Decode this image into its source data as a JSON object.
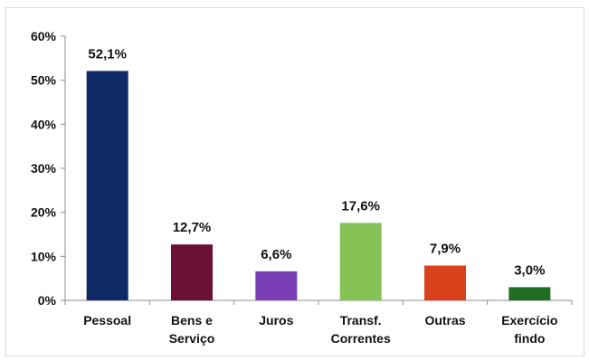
{
  "chart_data": {
    "type": "bar",
    "categories": [
      [
        "Pessoal"
      ],
      [
        "Bens e",
        "Serviço"
      ],
      [
        "Juros"
      ],
      [
        "Transf.",
        "Correntes"
      ],
      [
        "Outras"
      ],
      [
        "Exercício",
        "findo"
      ]
    ],
    "values": [
      52.1,
      12.7,
      6.6,
      17.6,
      7.9,
      3.0
    ],
    "data_labels": [
      "52,1%",
      "12,7%",
      "6,6%",
      "17,6%",
      "7,9%",
      "3,0%"
    ],
    "bar_colors": [
      "#0f2a66",
      "#6b0f34",
      "#7b3fb5",
      "#86c256",
      "#d9401c",
      "#1f6e22"
    ],
    "ylim": [
      0,
      60
    ],
    "yticks": [
      0,
      10,
      20,
      30,
      40,
      50,
      60
    ],
    "ytick_labels": [
      "0%",
      "10%",
      "20%",
      "30%",
      "40%",
      "50%",
      "60%"
    ],
    "grid": false,
    "title": "",
    "xlabel": "",
    "ylabel": ""
  }
}
